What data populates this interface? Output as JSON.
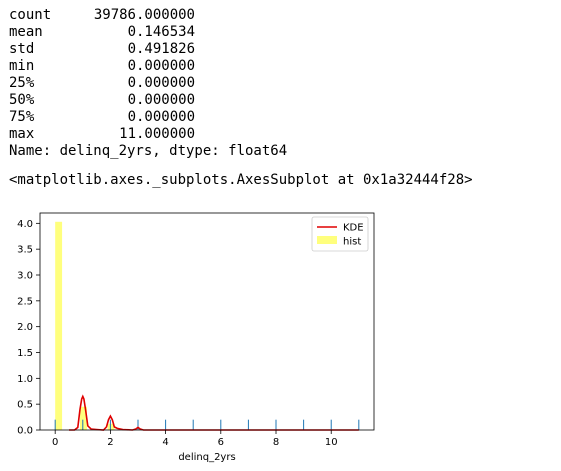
{
  "describe": {
    "rows": [
      {
        "key": "count",
        "value": "39786.000000"
      },
      {
        "key": "mean",
        "value": "0.146534"
      },
      {
        "key": "std",
        "value": "0.491826"
      },
      {
        "key": "min",
        "value": "0.000000"
      },
      {
        "key": "25%",
        "value": "0.000000"
      },
      {
        "key": "50%",
        "value": "0.000000"
      },
      {
        "key": "75%",
        "value": "0.000000"
      },
      {
        "key": "max",
        "value": "11.000000"
      }
    ],
    "name_line": "Name: delinq_2yrs, dtype: float64"
  },
  "repr_line": "<matplotlib.axes._subplots.AxesSubplot at 0x1a32444f28>",
  "chart_data": {
    "type": "bar",
    "xlabel": "delinq_2yrs",
    "ylabel": "",
    "xlim": [
      -0.55,
      11.55
    ],
    "ylim": [
      0,
      4.2
    ],
    "x_ticks": [
      "0",
      "2",
      "4",
      "6",
      "8",
      "10"
    ],
    "y_ticks": [
      "0.0",
      "0.5",
      "1.0",
      "1.5",
      "2.0",
      "2.5",
      "3.0",
      "3.5",
      "4.0"
    ],
    "legend_position": "top-right",
    "series": [
      {
        "name": "KDE",
        "kind": "line",
        "color": "#e00000",
        "x": [
          0.5,
          0.7,
          0.82,
          0.9,
          0.96,
          1.0,
          1.04,
          1.1,
          1.18,
          1.3,
          1.5,
          1.75,
          1.86,
          1.93,
          2.0,
          2.07,
          2.14,
          2.25,
          2.45,
          2.8,
          2.92,
          3.0,
          3.08,
          3.2,
          3.5,
          4.0,
          11.0
        ],
        "y": [
          0.0,
          0.0,
          0.05,
          0.4,
          0.6,
          0.65,
          0.6,
          0.4,
          0.08,
          0.02,
          0.01,
          0.0,
          0.06,
          0.2,
          0.27,
          0.2,
          0.06,
          0.03,
          0.01,
          0.0,
          0.02,
          0.05,
          0.02,
          0.0,
          0.0,
          0.0,
          0.0
        ]
      },
      {
        "name": "hist",
        "kind": "bar",
        "color": "#ffff66",
        "bins": [
          {
            "x0": 0.0,
            "x1": 0.25,
            "value": 4.03
          },
          {
            "x0": 0.9,
            "x1": 1.15,
            "value": 0.45
          },
          {
            "x0": 1.9,
            "x1": 2.15,
            "value": 0.12
          }
        ]
      },
      {
        "name": "",
        "kind": "rug",
        "color": "#1f77b4",
        "x": [
          0,
          1,
          2,
          3,
          4,
          5,
          6,
          7,
          8,
          9,
          10,
          11
        ],
        "height": 0.2
      }
    ]
  }
}
